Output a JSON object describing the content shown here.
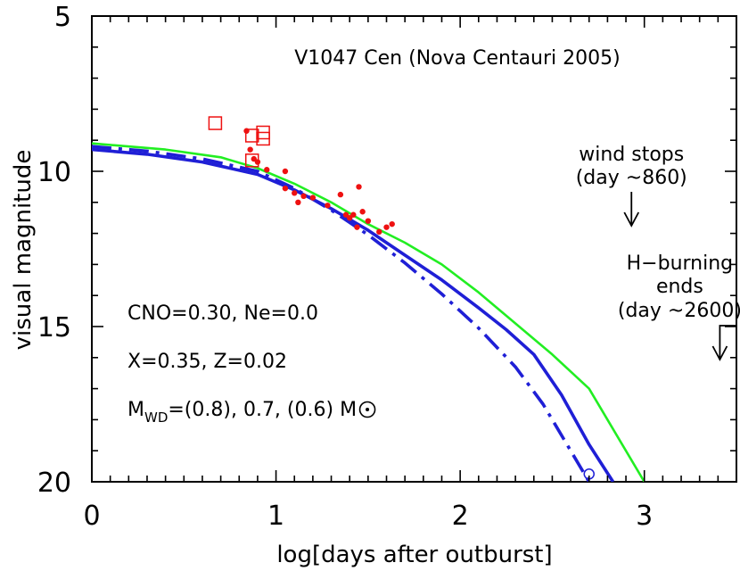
{
  "chart_data": {
    "type": "line",
    "title": "V1047 Cen (Nova Centauri 2005)",
    "xlabel": "log[days after outburst]",
    "ylabel": "visual magnitude",
    "xlim": [
      0,
      3.5
    ],
    "ylim": [
      5,
      20
    ],
    "y_inverted": true,
    "x_ticks": [
      0,
      1,
      2,
      3
    ],
    "x_tick_labels": [
      "0",
      "1",
      "2",
      "3"
    ],
    "y_ticks": [
      5,
      10,
      15,
      20
    ],
    "y_tick_labels": [
      "5",
      "10",
      "15",
      "20"
    ],
    "grid": false,
    "series": [
      {
        "key": "green",
        "style": "solid",
        "color": "#22ee22",
        "x": [
          0,
          0.4,
          0.7,
          0.9,
          1.1,
          1.3,
          1.5,
          1.7,
          1.9,
          2.1,
          2.3,
          2.5,
          2.7,
          2.85,
          3.0
        ],
        "y": [
          9.1,
          9.3,
          9.55,
          9.9,
          10.4,
          11.0,
          11.7,
          12.3,
          13.0,
          13.9,
          14.9,
          15.9,
          17.0,
          18.5,
          20.0
        ]
      },
      {
        "key": "blue-solid",
        "style": "solid",
        "color": "#1f1fd6",
        "x": [
          0,
          0.3,
          0.6,
          0.9,
          1.1,
          1.3,
          1.5,
          1.7,
          1.9,
          2.1,
          2.25,
          2.4,
          2.55,
          2.7,
          2.83
        ],
        "y": [
          9.3,
          9.45,
          9.7,
          10.1,
          10.6,
          11.2,
          11.9,
          12.7,
          13.5,
          14.4,
          15.1,
          15.9,
          17.2,
          18.8,
          20.0
        ]
      },
      {
        "key": "blue-dashdot",
        "style": "dashdot",
        "color": "#1f1fd6",
        "x": [
          0,
          0.3,
          0.6,
          0.9,
          1.1,
          1.3,
          1.5,
          1.7,
          1.9,
          2.1,
          2.3,
          2.45,
          2.6,
          2.7
        ],
        "y": [
          9.2,
          9.35,
          9.6,
          10.0,
          10.55,
          11.25,
          12.05,
          12.95,
          13.95,
          15.05,
          16.3,
          17.5,
          19.0,
          20.0
        ]
      }
    ],
    "observations": {
      "dots": [
        {
          "x": 0.84,
          "y": 8.7
        },
        {
          "x": 0.86,
          "y": 9.3
        },
        {
          "x": 0.88,
          "y": 9.6
        },
        {
          "x": 0.9,
          "y": 9.7
        },
        {
          "x": 0.95,
          "y": 9.95
        },
        {
          "x": 1.05,
          "y": 10.0
        },
        {
          "x": 1.05,
          "y": 10.55
        },
        {
          "x": 1.1,
          "y": 10.7
        },
        {
          "x": 1.12,
          "y": 11.0
        },
        {
          "x": 1.15,
          "y": 10.8
        },
        {
          "x": 1.2,
          "y": 10.85
        },
        {
          "x": 1.28,
          "y": 11.1
        },
        {
          "x": 1.35,
          "y": 10.75
        },
        {
          "x": 1.38,
          "y": 11.4
        },
        {
          "x": 1.4,
          "y": 11.5
        },
        {
          "x": 1.42,
          "y": 11.4
        },
        {
          "x": 1.44,
          "y": 11.8
        },
        {
          "x": 1.45,
          "y": 10.5
        },
        {
          "x": 1.47,
          "y": 11.3
        },
        {
          "x": 1.5,
          "y": 11.6
        },
        {
          "x": 1.56,
          "y": 11.95
        },
        {
          "x": 1.6,
          "y": 11.8
        },
        {
          "x": 1.63,
          "y": 11.7
        }
      ],
      "squares": [
        {
          "x": 0.67,
          "y": 8.45
        },
        {
          "x": 0.87,
          "y": 8.85
        },
        {
          "x": 0.93,
          "y": 8.75
        },
        {
          "x": 0.93,
          "y": 8.95
        },
        {
          "x": 0.87,
          "y": 9.65
        }
      ],
      "circles": [
        {
          "x": 2.7,
          "y": 19.75
        }
      ]
    },
    "annotations": {
      "params_1": "CNO=0.30, Ne=0.0",
      "params_2": "X=0.35, Z=0.02",
      "mass_m": "M",
      "mass_sub": "WD",
      "mass_rest": "=(0.8), 0.7, (0.6) M",
      "wind_line1": "wind stops",
      "wind_line2": "(day ~860)",
      "wind_x": 2.93,
      "hburn_line1": "H−burning",
      "hburn_line2": "ends",
      "hburn_line3": "(day ~2600)",
      "hburn_x": 3.41
    }
  }
}
